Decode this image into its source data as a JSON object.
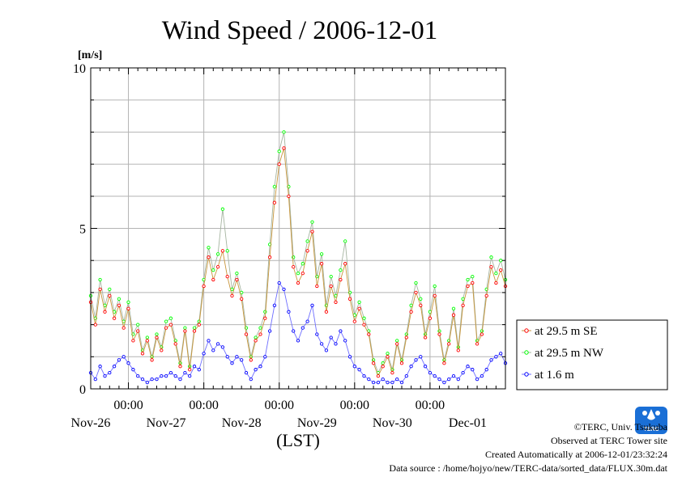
{
  "chart_data": {
    "type": "line",
    "title": "Wind Speed / 2006-12-01",
    "ylabel": "[m/s]",
    "xlabel": "(LST)",
    "ylim": [
      0,
      10
    ],
    "yticks": [
      0,
      5,
      10
    ],
    "xlim_hours": [
      -132,
      0
    ],
    "x_unit": "hours relative to 2006-12-01 00:00 LST",
    "grid": true,
    "legend_position": "right",
    "x_ticks": [
      {
        "hour": -120,
        "time": "00:00",
        "date": "Nov-26"
      },
      {
        "hour": -96,
        "time": "00:00",
        "date": "Nov-27"
      },
      {
        "hour": -72,
        "time": "00:00",
        "date": "Nov-28"
      },
      {
        "hour": -48,
        "time": "00:00",
        "date": "Nov-29"
      },
      {
        "hour": -24,
        "time": "00:00",
        "date": "Nov-30"
      },
      {
        "hour": 0,
        "time": "",
        "date": "Dec-01"
      }
    ],
    "series": [
      {
        "name": "at 29.5 m SE",
        "color": "#ff0000",
        "line_color": "#c8963c",
        "points": [
          [
            -132,
            2.7
          ],
          [
            -130.5,
            2.0
          ],
          [
            -129,
            3.1
          ],
          [
            -127.5,
            2.4
          ],
          [
            -126,
            2.9
          ],
          [
            -124.5,
            2.2
          ],
          [
            -123,
            2.6
          ],
          [
            -121.5,
            1.9
          ],
          [
            -120,
            2.5
          ],
          [
            -118.5,
            1.5
          ],
          [
            -117,
            1.8
          ],
          [
            -115.5,
            1.1
          ],
          [
            -114,
            1.5
          ],
          [
            -112.5,
            0.9
          ],
          [
            -111,
            1.6
          ],
          [
            -109.5,
            1.2
          ],
          [
            -108,
            1.9
          ],
          [
            -106.5,
            2.0
          ],
          [
            -105,
            1.4
          ],
          [
            -103.5,
            0.7
          ],
          [
            -102,
            1.8
          ],
          [
            -100.5,
            0.6
          ],
          [
            -99,
            1.8
          ],
          [
            -97.5,
            2.0
          ],
          [
            -96,
            3.2
          ],
          [
            -94.5,
            4.1
          ],
          [
            -93,
            3.4
          ],
          [
            -91.5,
            3.8
          ],
          [
            -90,
            4.3
          ],
          [
            -88.5,
            3.5
          ],
          [
            -87,
            2.9
          ],
          [
            -85.5,
            3.4
          ],
          [
            -84,
            2.8
          ],
          [
            -82.5,
            1.7
          ],
          [
            -81,
            0.9
          ],
          [
            -79.5,
            1.5
          ],
          [
            -78,
            1.7
          ],
          [
            -76.5,
            2.2
          ],
          [
            -75,
            4.1
          ],
          [
            -73.5,
            5.8
          ],
          [
            -72,
            7.0
          ],
          [
            -70.5,
            7.5
          ],
          [
            -69,
            6.0
          ],
          [
            -67.5,
            3.8
          ],
          [
            -66,
            3.3
          ],
          [
            -64.5,
            3.6
          ],
          [
            -63,
            4.3
          ],
          [
            -61.5,
            4.9
          ],
          [
            -60,
            3.2
          ],
          [
            -58.5,
            3.9
          ],
          [
            -57,
            2.4
          ],
          [
            -55.5,
            3.2
          ],
          [
            -54,
            2.7
          ],
          [
            -52.5,
            3.4
          ],
          [
            -51,
            3.9
          ],
          [
            -49.5,
            2.8
          ],
          [
            -48,
            2.1
          ],
          [
            -46.5,
            2.5
          ],
          [
            -45,
            2.0
          ],
          [
            -43.5,
            1.7
          ],
          [
            -42,
            0.8
          ],
          [
            -40.5,
            0.4
          ],
          [
            -39,
            0.7
          ],
          [
            -37.5,
            1.0
          ],
          [
            -36,
            0.5
          ],
          [
            -34.5,
            1.4
          ],
          [
            -33,
            0.8
          ],
          [
            -31.5,
            1.6
          ],
          [
            -30,
            2.4
          ],
          [
            -28.5,
            3.0
          ],
          [
            -27,
            2.6
          ],
          [
            -25.5,
            1.6
          ],
          [
            -24,
            2.2
          ],
          [
            -22.5,
            2.9
          ],
          [
            -21,
            1.7
          ],
          [
            -19.5,
            0.8
          ],
          [
            -18,
            1.4
          ],
          [
            -16.5,
            2.3
          ],
          [
            -15,
            1.2
          ],
          [
            -13.5,
            2.6
          ],
          [
            -12,
            3.2
          ],
          [
            -10.5,
            3.3
          ],
          [
            -9,
            1.4
          ],
          [
            -7.5,
            1.7
          ],
          [
            -6,
            2.9
          ],
          [
            -4.5,
            3.8
          ],
          [
            -3,
            3.3
          ],
          [
            -1.5,
            3.7
          ],
          [
            0,
            3.2
          ]
        ]
      },
      {
        "name": "at 29.5 m NW",
        "color": "#00ff00",
        "line_color": "#a5b4a0",
        "points": [
          [
            -132,
            2.9
          ],
          [
            -130.5,
            2.2
          ],
          [
            -129,
            3.4
          ],
          [
            -127.5,
            2.6
          ],
          [
            -126,
            3.1
          ],
          [
            -124.5,
            2.4
          ],
          [
            -123,
            2.8
          ],
          [
            -121.5,
            2.1
          ],
          [
            -120,
            2.7
          ],
          [
            -118.5,
            1.7
          ],
          [
            -117,
            2.0
          ],
          [
            -115.5,
            1.2
          ],
          [
            -114,
            1.6
          ],
          [
            -112.5,
            1.0
          ],
          [
            -111,
            1.7
          ],
          [
            -109.5,
            1.3
          ],
          [
            -108,
            2.1
          ],
          [
            -106.5,
            2.2
          ],
          [
            -105,
            1.5
          ],
          [
            -103.5,
            0.8
          ],
          [
            -102,
            1.9
          ],
          [
            -100.5,
            0.7
          ],
          [
            -99,
            1.9
          ],
          [
            -97.5,
            2.1
          ],
          [
            -96,
            3.4
          ],
          [
            -94.5,
            4.4
          ],
          [
            -93,
            3.7
          ],
          [
            -91.5,
            4.2
          ],
          [
            -90,
            5.6
          ],
          [
            -88.5,
            4.3
          ],
          [
            -87,
            3.1
          ],
          [
            -85.5,
            3.6
          ],
          [
            -84,
            3.0
          ],
          [
            -82.5,
            1.9
          ],
          [
            -81,
            1.0
          ],
          [
            -79.5,
            1.6
          ],
          [
            -78,
            1.9
          ],
          [
            -76.5,
            2.4
          ],
          [
            -75,
            4.5
          ],
          [
            -73.5,
            6.3
          ],
          [
            -72,
            7.4
          ],
          [
            -70.5,
            8.0
          ],
          [
            -69,
            6.3
          ],
          [
            -67.5,
            4.1
          ],
          [
            -66,
            3.6
          ],
          [
            -64.5,
            3.9
          ],
          [
            -63,
            4.6
          ],
          [
            -61.5,
            5.2
          ],
          [
            -60,
            3.5
          ],
          [
            -58.5,
            4.2
          ],
          [
            -57,
            2.6
          ],
          [
            -55.5,
            3.5
          ],
          [
            -54,
            2.9
          ],
          [
            -52.5,
            3.7
          ],
          [
            -51,
            4.6
          ],
          [
            -49.5,
            3.0
          ],
          [
            -48,
            2.3
          ],
          [
            -46.5,
            2.7
          ],
          [
            -45,
            2.2
          ],
          [
            -43.5,
            1.8
          ],
          [
            -42,
            0.9
          ],
          [
            -40.5,
            0.5
          ],
          [
            -39,
            0.8
          ],
          [
            -37.5,
            1.1
          ],
          [
            -36,
            0.6
          ],
          [
            -34.5,
            1.5
          ],
          [
            -33,
            0.9
          ],
          [
            -31.5,
            1.7
          ],
          [
            -30,
            2.6
          ],
          [
            -28.5,
            3.3
          ],
          [
            -27,
            2.8
          ],
          [
            -25.5,
            1.7
          ],
          [
            -24,
            2.4
          ],
          [
            -22.5,
            3.2
          ],
          [
            -21,
            1.8
          ],
          [
            -19.5,
            0.9
          ],
          [
            -18,
            1.5
          ],
          [
            -16.5,
            2.5
          ],
          [
            -15,
            1.3
          ],
          [
            -13.5,
            2.8
          ],
          [
            -12,
            3.4
          ],
          [
            -10.5,
            3.5
          ],
          [
            -9,
            1.5
          ],
          [
            -7.5,
            1.8
          ],
          [
            -6,
            3.1
          ],
          [
            -4.5,
            4.1
          ],
          [
            -3,
            3.6
          ],
          [
            -1.5,
            4.0
          ],
          [
            0,
            3.4
          ]
        ]
      },
      {
        "name": "at 1.6 m",
        "color": "#0000ff",
        "line_color": "#6e6eff",
        "points": [
          [
            -132,
            0.5
          ],
          [
            -130.5,
            0.3
          ],
          [
            -129,
            0.7
          ],
          [
            -127.5,
            0.4
          ],
          [
            -126,
            0.5
          ],
          [
            -124.5,
            0.7
          ],
          [
            -123,
            0.9
          ],
          [
            -121.5,
            1.0
          ],
          [
            -120,
            0.8
          ],
          [
            -118.5,
            0.6
          ],
          [
            -117,
            0.4
          ],
          [
            -115.5,
            0.3
          ],
          [
            -114,
            0.2
          ],
          [
            -112.5,
            0.3
          ],
          [
            -111,
            0.3
          ],
          [
            -109.5,
            0.4
          ],
          [
            -108,
            0.4
          ],
          [
            -106.5,
            0.5
          ],
          [
            -105,
            0.4
          ],
          [
            -103.5,
            0.3
          ],
          [
            -102,
            0.5
          ],
          [
            -100.5,
            0.4
          ],
          [
            -99,
            0.7
          ],
          [
            -97.5,
            0.6
          ],
          [
            -96,
            1.1
          ],
          [
            -94.5,
            1.5
          ],
          [
            -93,
            1.2
          ],
          [
            -91.5,
            1.4
          ],
          [
            -90,
            1.3
          ],
          [
            -88.5,
            1.0
          ],
          [
            -87,
            0.8
          ],
          [
            -85.5,
            1.0
          ],
          [
            -84,
            0.9
          ],
          [
            -82.5,
            0.5
          ],
          [
            -81,
            0.3
          ],
          [
            -79.5,
            0.6
          ],
          [
            -78,
            0.7
          ],
          [
            -76.5,
            1.0
          ],
          [
            -75,
            1.8
          ],
          [
            -73.5,
            2.6
          ],
          [
            -72,
            3.3
          ],
          [
            -70.5,
            3.1
          ],
          [
            -69,
            2.4
          ],
          [
            -67.5,
            1.8
          ],
          [
            -66,
            1.5
          ],
          [
            -64.5,
            1.9
          ],
          [
            -63,
            2.1
          ],
          [
            -61.5,
            2.6
          ],
          [
            -60,
            1.7
          ],
          [
            -58.5,
            1.4
          ],
          [
            -57,
            1.2
          ],
          [
            -55.5,
            1.6
          ],
          [
            -54,
            1.4
          ],
          [
            -52.5,
            1.8
          ],
          [
            -51,
            1.5
          ],
          [
            -49.5,
            1.0
          ],
          [
            -48,
            0.7
          ],
          [
            -46.5,
            0.6
          ],
          [
            -45,
            0.4
          ],
          [
            -43.5,
            0.3
          ],
          [
            -42,
            0.2
          ],
          [
            -40.5,
            0.2
          ],
          [
            -39,
            0.3
          ],
          [
            -37.5,
            0.2
          ],
          [
            -36,
            0.2
          ],
          [
            -34.5,
            0.3
          ],
          [
            -33,
            0.2
          ],
          [
            -31.5,
            0.4
          ],
          [
            -30,
            0.7
          ],
          [
            -28.5,
            0.9
          ],
          [
            -27,
            1.0
          ],
          [
            -25.5,
            0.7
          ],
          [
            -24,
            0.5
          ],
          [
            -22.5,
            0.4
          ],
          [
            -21,
            0.3
          ],
          [
            -19.5,
            0.2
          ],
          [
            -18,
            0.3
          ],
          [
            -16.5,
            0.4
          ],
          [
            -15,
            0.3
          ],
          [
            -13.5,
            0.5
          ],
          [
            -12,
            0.7
          ],
          [
            -10.5,
            0.6
          ],
          [
            -9,
            0.3
          ],
          [
            -7.5,
            0.4
          ],
          [
            -6,
            0.6
          ],
          [
            -4.5,
            0.9
          ],
          [
            -3,
            1.0
          ],
          [
            -1.5,
            1.1
          ],
          [
            0,
            0.8
          ]
        ]
      }
    ]
  },
  "footer": {
    "copyright": "©TERC, Univ. Tsukuba",
    "observed": "Observed at TERC Tower site",
    "created": "Created Automatically at 2006-12-01/23:32:24",
    "source": "Data source : /home/hojyo/new/TERC-data/sorted_data/FLUX.30m.dat"
  },
  "logo": {
    "text": "TERC",
    "color": "#1a6fd6"
  }
}
